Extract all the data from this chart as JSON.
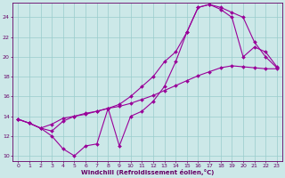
{
  "xlabel": "Windchill (Refroidissement éolien,°C)",
  "bg_color": "#cce8e8",
  "grid_color": "#99cccc",
  "line_color": "#990099",
  "xlim": [
    -0.5,
    23.5
  ],
  "ylim": [
    9.5,
    25.5
  ],
  "xticks": [
    0,
    1,
    2,
    3,
    4,
    5,
    6,
    7,
    8,
    9,
    10,
    11,
    12,
    13,
    14,
    15,
    16,
    17,
    18,
    19,
    20,
    21,
    22,
    23
  ],
  "yticks": [
    10,
    12,
    14,
    16,
    18,
    20,
    22,
    24
  ],
  "line1_x": [
    0,
    1,
    2,
    3,
    4,
    5,
    6,
    7,
    8,
    9,
    10,
    11,
    12,
    13,
    14,
    15,
    16,
    17,
    18,
    19,
    20,
    21,
    22,
    23
  ],
  "line1_y": [
    13.7,
    13.3,
    12.8,
    12.0,
    10.7,
    10.0,
    11.0,
    11.2,
    14.8,
    11.0,
    14.0,
    14.5,
    15.5,
    17.0,
    19.5,
    22.5,
    25.0,
    25.3,
    25.0,
    24.5,
    24.0,
    21.5,
    20.0,
    18.9
  ],
  "line2_x": [
    0,
    1,
    2,
    3,
    4,
    5,
    6,
    7,
    8,
    9,
    10,
    11,
    12,
    13,
    14,
    15,
    16,
    17,
    18,
    19,
    20,
    21,
    22,
    23
  ],
  "line2_y": [
    13.7,
    13.3,
    12.8,
    12.5,
    13.5,
    14.0,
    14.3,
    14.5,
    14.8,
    15.2,
    16.0,
    17.0,
    18.0,
    19.5,
    20.5,
    22.5,
    25.0,
    25.3,
    24.8,
    24.0,
    20.0,
    21.0,
    20.5,
    19.0
  ],
  "line3_x": [
    0,
    1,
    2,
    3,
    4,
    5,
    6,
    7,
    8,
    9,
    10,
    11,
    12,
    13,
    14,
    15,
    16,
    17,
    18,
    19,
    20,
    21,
    22,
    23
  ],
  "line3_y": [
    13.7,
    13.3,
    12.8,
    13.2,
    13.8,
    14.0,
    14.2,
    14.5,
    14.8,
    15.0,
    15.3,
    15.7,
    16.1,
    16.6,
    17.1,
    17.6,
    18.1,
    18.5,
    18.9,
    19.1,
    19.0,
    18.9,
    18.8,
    18.8
  ]
}
